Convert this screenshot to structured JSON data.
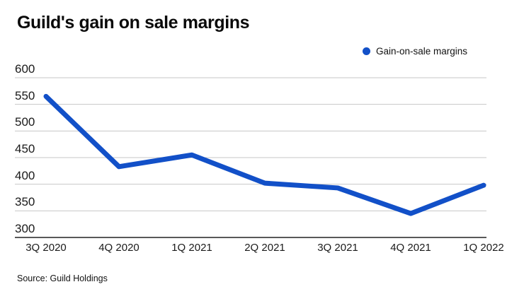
{
  "title": "Guild's gain on sale margins",
  "legend": {
    "label": "Gain-on-sale margins",
    "marker": "circle-icon",
    "color": "#1250c8"
  },
  "source": "Source: Guild Holdings",
  "chart_data": {
    "type": "line",
    "title": "Guild's gain on sale margins",
    "categories": [
      "3Q 2020",
      "4Q 2020",
      "1Q 2021",
      "2Q 2021",
      "3Q 2021",
      "4Q 2021",
      "1Q 2022"
    ],
    "series": [
      {
        "name": "Gain-on-sale margins",
        "values": [
          565,
          433,
          455,
          402,
          393,
          345,
          398
        ]
      }
    ],
    "xlabel": "",
    "ylabel": "",
    "ylim": [
      300,
      600
    ],
    "yticks": [
      600,
      550,
      500,
      450,
      400,
      350,
      300
    ],
    "grid": true,
    "legend_position": "top-right",
    "line_color": "#1250c8",
    "gridline_color": "#c7c7c7",
    "axis_color": "#222222",
    "tick_label_color": "#1a1a1a"
  }
}
